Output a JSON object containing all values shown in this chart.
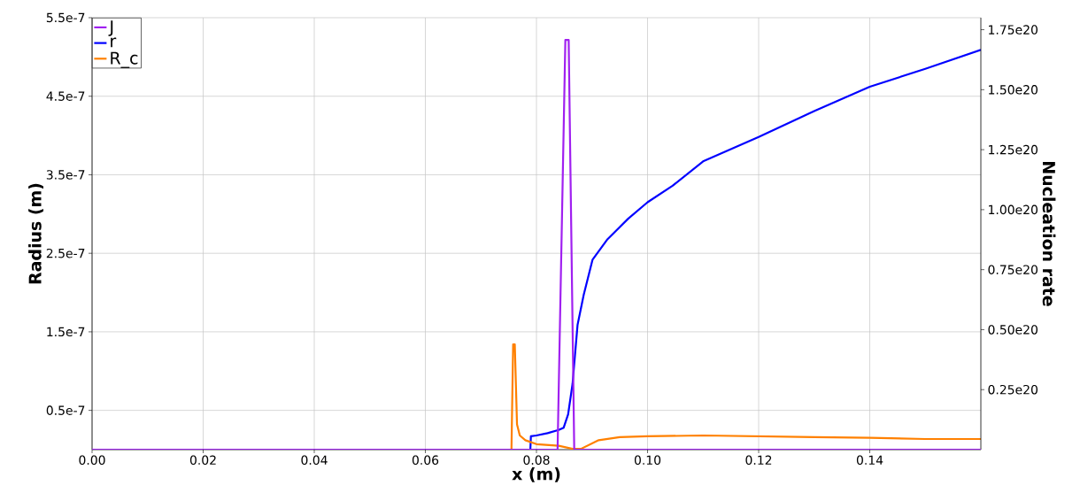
{
  "chart_data": {
    "type": "line",
    "xlabel": "x (m)",
    "ylabel": "Radius (m)",
    "y2label": "Nucleation rate",
    "xlim": [
      0,
      0.16
    ],
    "xticks": [
      {
        "value": 0,
        "label": "0.00"
      },
      {
        "value": 0.02,
        "label": "0.02"
      },
      {
        "value": 0.04,
        "label": "0.04"
      },
      {
        "value": 0.06,
        "label": "0.06"
      },
      {
        "value": 0.08,
        "label": "0.08"
      },
      {
        "value": 0.1,
        "label": "0.10"
      },
      {
        "value": 0.12,
        "label": "0.12"
      },
      {
        "value": 0.14,
        "label": "0.14"
      }
    ],
    "ylim": [
      0,
      5.5e-07
    ],
    "yticks": [
      {
        "value": 5e-08,
        "label": "0.5e-7"
      },
      {
        "value": 1.5e-07,
        "label": "1.5e-7"
      },
      {
        "value": 2.5e-07,
        "label": "2.5e-7"
      },
      {
        "value": 3.5e-07,
        "label": "3.5e-7"
      },
      {
        "value": 4.5e-07,
        "label": "4.5e-7"
      },
      {
        "value": 5.5e-07,
        "label": "5.5e-7"
      }
    ],
    "y2lim": [
      0,
      1.8e+20
    ],
    "y2ticks": [
      {
        "value": 2.5e+19,
        "label": "0.25e20"
      },
      {
        "value": 5e+19,
        "label": "0.50e20"
      },
      {
        "value": 7.5e+19,
        "label": "0.75e20"
      },
      {
        "value": 1e+20,
        "label": "1.00e20"
      },
      {
        "value": 1.25e+20,
        "label": "1.25e20"
      },
      {
        "value": 1.5e+20,
        "label": "1.50e20"
      },
      {
        "value": 1.75e+20,
        "label": "1.75e20"
      }
    ],
    "grid": true,
    "legend": "top left",
    "series": [
      {
        "name": "J",
        "color": "#a020f0",
        "axis": "y2",
        "x": [
          0,
          0.0838,
          0.0852,
          0.0858,
          0.0868,
          0.16
        ],
        "values": [
          0,
          0,
          1.707e+20,
          1.707e+20,
          0,
          0
        ]
      },
      {
        "name": "r",
        "color": "#0000ff",
        "x": [
          0,
          0.0789,
          0.079,
          0.08,
          0.082,
          0.084,
          0.0849,
          0.0857,
          0.0865,
          0.0874,
          0.0885,
          0.0901,
          0.0928,
          0.0965,
          0.1,
          0.1045,
          0.11,
          0.12,
          0.13,
          0.14,
          0.15,
          0.16
        ],
        "values": [
          0,
          0,
          1.7e-08,
          1.8e-08,
          2.1e-08,
          2.5e-08,
          2.8e-08,
          4.5e-08,
          8.4e-08,
          1.59e-07,
          1.97e-07,
          2.42e-07,
          2.68e-07,
          2.94e-07,
          3.15e-07,
          3.36e-07,
          3.67e-07,
          3.98e-07,
          4.31e-07,
          4.62e-07,
          4.85e-07,
          5.09e-07
        ]
      },
      {
        "name": "R_c",
        "color": "#ff8000",
        "x": [
          0,
          0.0755,
          0.0758,
          0.0761,
          0.0765,
          0.077,
          0.078,
          0.08,
          0.084,
          0.0865,
          0.088,
          0.0912,
          0.095,
          0.1,
          0.11,
          0.12,
          0.13,
          0.14,
          0.15,
          0.16
        ],
        "values": [
          0,
          0,
          1.34e-07,
          1.34e-07,
          3.2e-08,
          1.8e-08,
          1.2e-08,
          7e-09,
          5e-09,
          1e-09,
          1e-09,
          1.2e-08,
          1.6e-08,
          1.7e-08,
          1.8e-08,
          1.7e-08,
          1.6e-08,
          1.5e-08,
          1.35e-08,
          1.35e-08
        ]
      }
    ]
  }
}
